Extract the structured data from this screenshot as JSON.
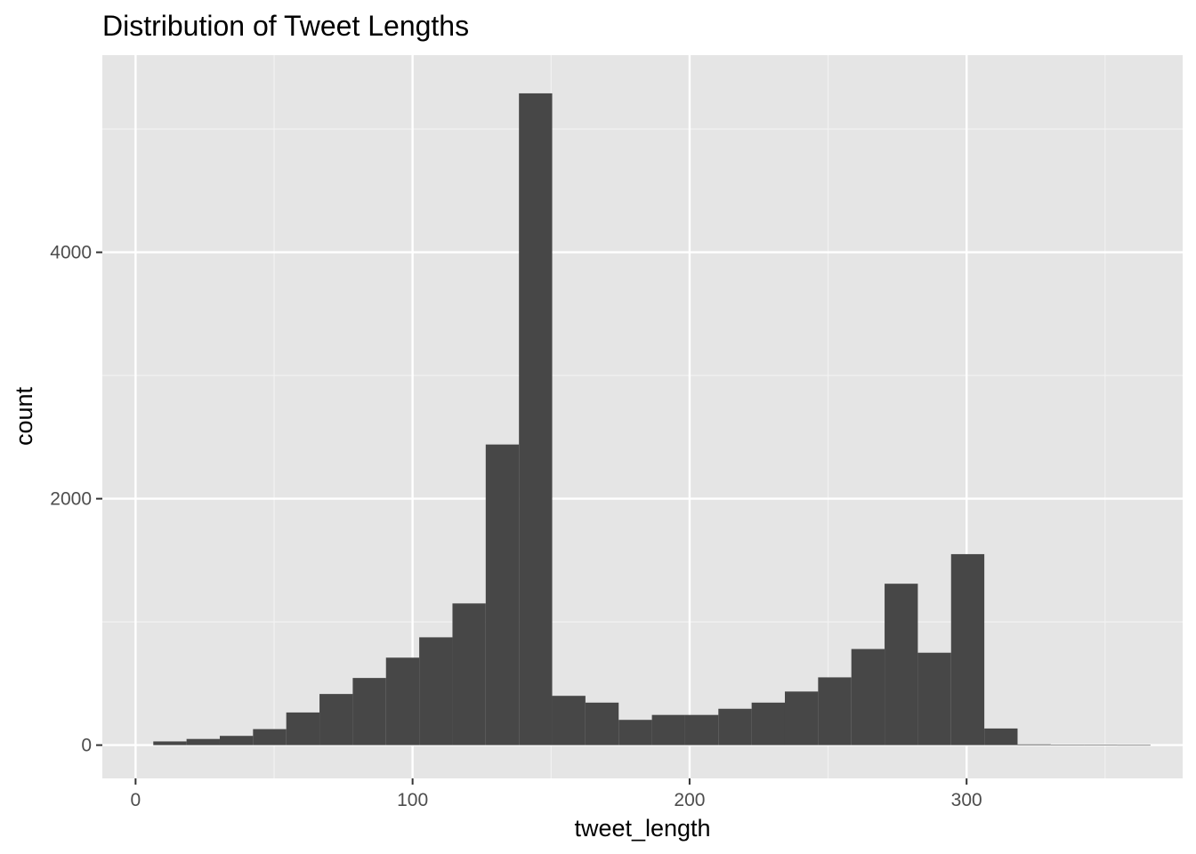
{
  "chart_data": {
    "type": "bar",
    "subtype": "histogram",
    "title": "Distribution of Tweet Lengths",
    "xlabel": "tweet_length",
    "ylabel": "count",
    "xlim": [
      -12,
      378
    ],
    "ylim": [
      -270,
      5600
    ],
    "x_ticks": [
      0,
      100,
      200,
      300
    ],
    "x_tick_labels": [
      "0",
      "100",
      "200",
      "300"
    ],
    "y_ticks": [
      0,
      2000,
      4000
    ],
    "y_tick_labels": [
      "0",
      "2000",
      "4000"
    ],
    "grid": true,
    "legend": "none",
    "panel_color": "#e5e5e5",
    "bar_color": "#474747",
    "bins": [
      {
        "x0": 6.4,
        "x1": 18.4,
        "count": 30
      },
      {
        "x0": 18.4,
        "x1": 30.4,
        "count": 50
      },
      {
        "x0": 30.4,
        "x1": 42.4,
        "count": 75
      },
      {
        "x0": 42.4,
        "x1": 54.4,
        "count": 130
      },
      {
        "x0": 54.4,
        "x1": 66.4,
        "count": 265
      },
      {
        "x0": 66.4,
        "x1": 78.4,
        "count": 415
      },
      {
        "x0": 78.4,
        "x1": 90.4,
        "count": 545
      },
      {
        "x0": 90.4,
        "x1": 102.4,
        "count": 710
      },
      {
        "x0": 102.4,
        "x1": 114.4,
        "count": 875
      },
      {
        "x0": 114.4,
        "x1": 126.4,
        "count": 1150
      },
      {
        "x0": 126.4,
        "x1": 138.4,
        "count": 2440
      },
      {
        "x0": 138.4,
        "x1": 150.4,
        "count": 5290
      },
      {
        "x0": 150.4,
        "x1": 162.4,
        "count": 400
      },
      {
        "x0": 162.4,
        "x1": 174.4,
        "count": 345
      },
      {
        "x0": 174.4,
        "x1": 186.4,
        "count": 205
      },
      {
        "x0": 186.4,
        "x1": 198.4,
        "count": 245
      },
      {
        "x0": 198.4,
        "x1": 210.4,
        "count": 245
      },
      {
        "x0": 210.4,
        "x1": 222.4,
        "count": 295
      },
      {
        "x0": 222.4,
        "x1": 234.4,
        "count": 345
      },
      {
        "x0": 234.4,
        "x1": 246.4,
        "count": 435
      },
      {
        "x0": 246.4,
        "x1": 258.4,
        "count": 550
      },
      {
        "x0": 258.4,
        "x1": 270.4,
        "count": 780
      },
      {
        "x0": 270.4,
        "x1": 282.4,
        "count": 1310
      },
      {
        "x0": 282.4,
        "x1": 294.4,
        "count": 750
      },
      {
        "x0": 294.4,
        "x1": 306.4,
        "count": 1550
      },
      {
        "x0": 306.4,
        "x1": 318.4,
        "count": 135
      },
      {
        "x0": 318.4,
        "x1": 330.4,
        "count": 6
      },
      {
        "x0": 330.4,
        "x1": 342.4,
        "count": 3
      },
      {
        "x0": 342.4,
        "x1": 354.4,
        "count": 2
      },
      {
        "x0": 354.4,
        "x1": 366.4,
        "count": 1
      }
    ]
  }
}
